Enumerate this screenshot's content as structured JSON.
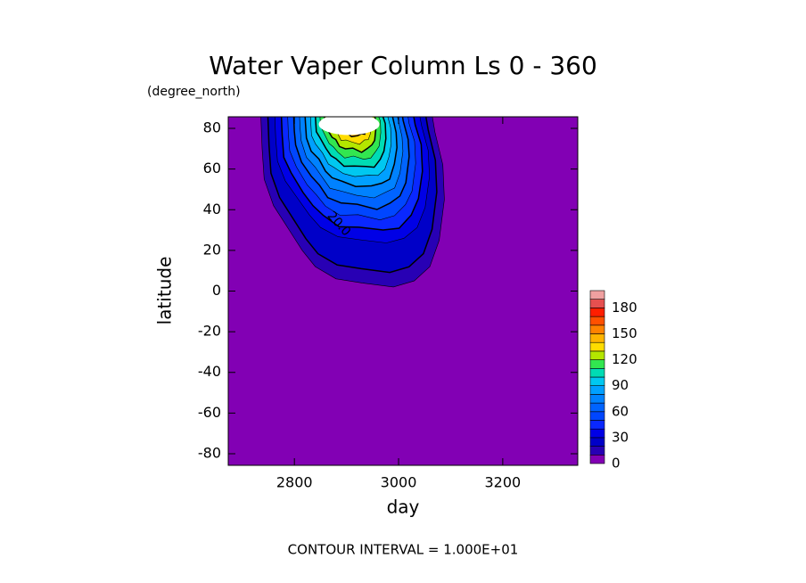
{
  "chart_data": {
    "type": "contour",
    "title": "Water Vaper Column Ls 0 - 360",
    "units": "(degree_north)",
    "x_label": "day",
    "y_label": "latitude",
    "annotation": "CONTOUR INTERVAL = 1.000E+01",
    "contour_label": "20.0",
    "xlim": [
      2673,
      3344
    ],
    "xticks": [
      2800,
      3000,
      3200
    ],
    "ylim": [
      -85.7,
      85.7
    ],
    "yticks": [
      -80,
      -60,
      -40,
      -20,
      0,
      20,
      40,
      60,
      80
    ],
    "levels": [
      0,
      10,
      20,
      30,
      40,
      50,
      60,
      70,
      80,
      90,
      100,
      110,
      120,
      130,
      140,
      150,
      160,
      170,
      180,
      190
    ],
    "colors": [
      "#8200b4",
      "#2800b4",
      "#0000c8",
      "#0000e6",
      "#0a28ff",
      "#0046ff",
      "#0064ff",
      "#0082ff",
      "#00a0ff",
      "#00c8f0",
      "#00dcb4",
      "#32e650",
      "#b4e600",
      "#ffdc00",
      "#ffb400",
      "#ff8200",
      "#ff5000",
      "#ff1e00",
      "#e65050",
      "#f0a0a0"
    ],
    "colorbar_ticks": [
      0,
      30,
      60,
      90,
      120,
      150,
      180
    ]
  }
}
